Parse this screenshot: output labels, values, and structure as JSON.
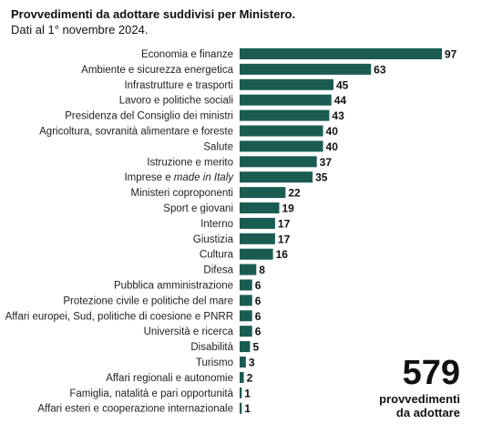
{
  "header": {
    "title": "Provvedimenti da adottare suddivisi per Ministero.",
    "subtitle": "Dati al 1° novembre 2024."
  },
  "total": {
    "value": "579",
    "line1": "provvedimenti",
    "line2": "da adottare"
  },
  "colors": {
    "bar": "#1a5c52"
  },
  "chart_data": {
    "type": "bar",
    "orientation": "horizontal",
    "categories": [
      "Economia e finanze",
      "Ambiente e sicurezza energetica",
      "Infrastrutture e trasporti",
      "Lavoro e politiche sociali",
      "Presidenza del Consiglio dei ministri",
      "Agricoltura, sovranità alimentare e foreste",
      "Salute",
      "Istruzione e merito",
      "Imprese e made in Italy",
      "Ministeri coproponenti",
      "Sport e giovani",
      "Interno",
      "Giustizia",
      "Cultura",
      "Difesa",
      "Pubblica amministrazione",
      "Protezione civile e politiche del mare",
      "Affari europei, Sud, politiche di coesione e PNRR",
      "Università e ricerca",
      "Disabilità",
      "Turismo",
      "Affari regionali e autonomie",
      "Famiglia, natalità e pari opportunità",
      "Affari esteri e cooperazione internazionale"
    ],
    "values": [
      97,
      63,
      45,
      44,
      43,
      40,
      40,
      37,
      35,
      22,
      19,
      17,
      17,
      16,
      8,
      6,
      6,
      6,
      6,
      5,
      3,
      2,
      1,
      1
    ],
    "title": "Provvedimenti da adottare suddivisi per Ministero.",
    "subtitle": "Dati al 1° novembre 2024.",
    "xlabel": "",
    "ylabel": "",
    "xlim": [
      0,
      97
    ],
    "grid": false,
    "legend": "none"
  }
}
